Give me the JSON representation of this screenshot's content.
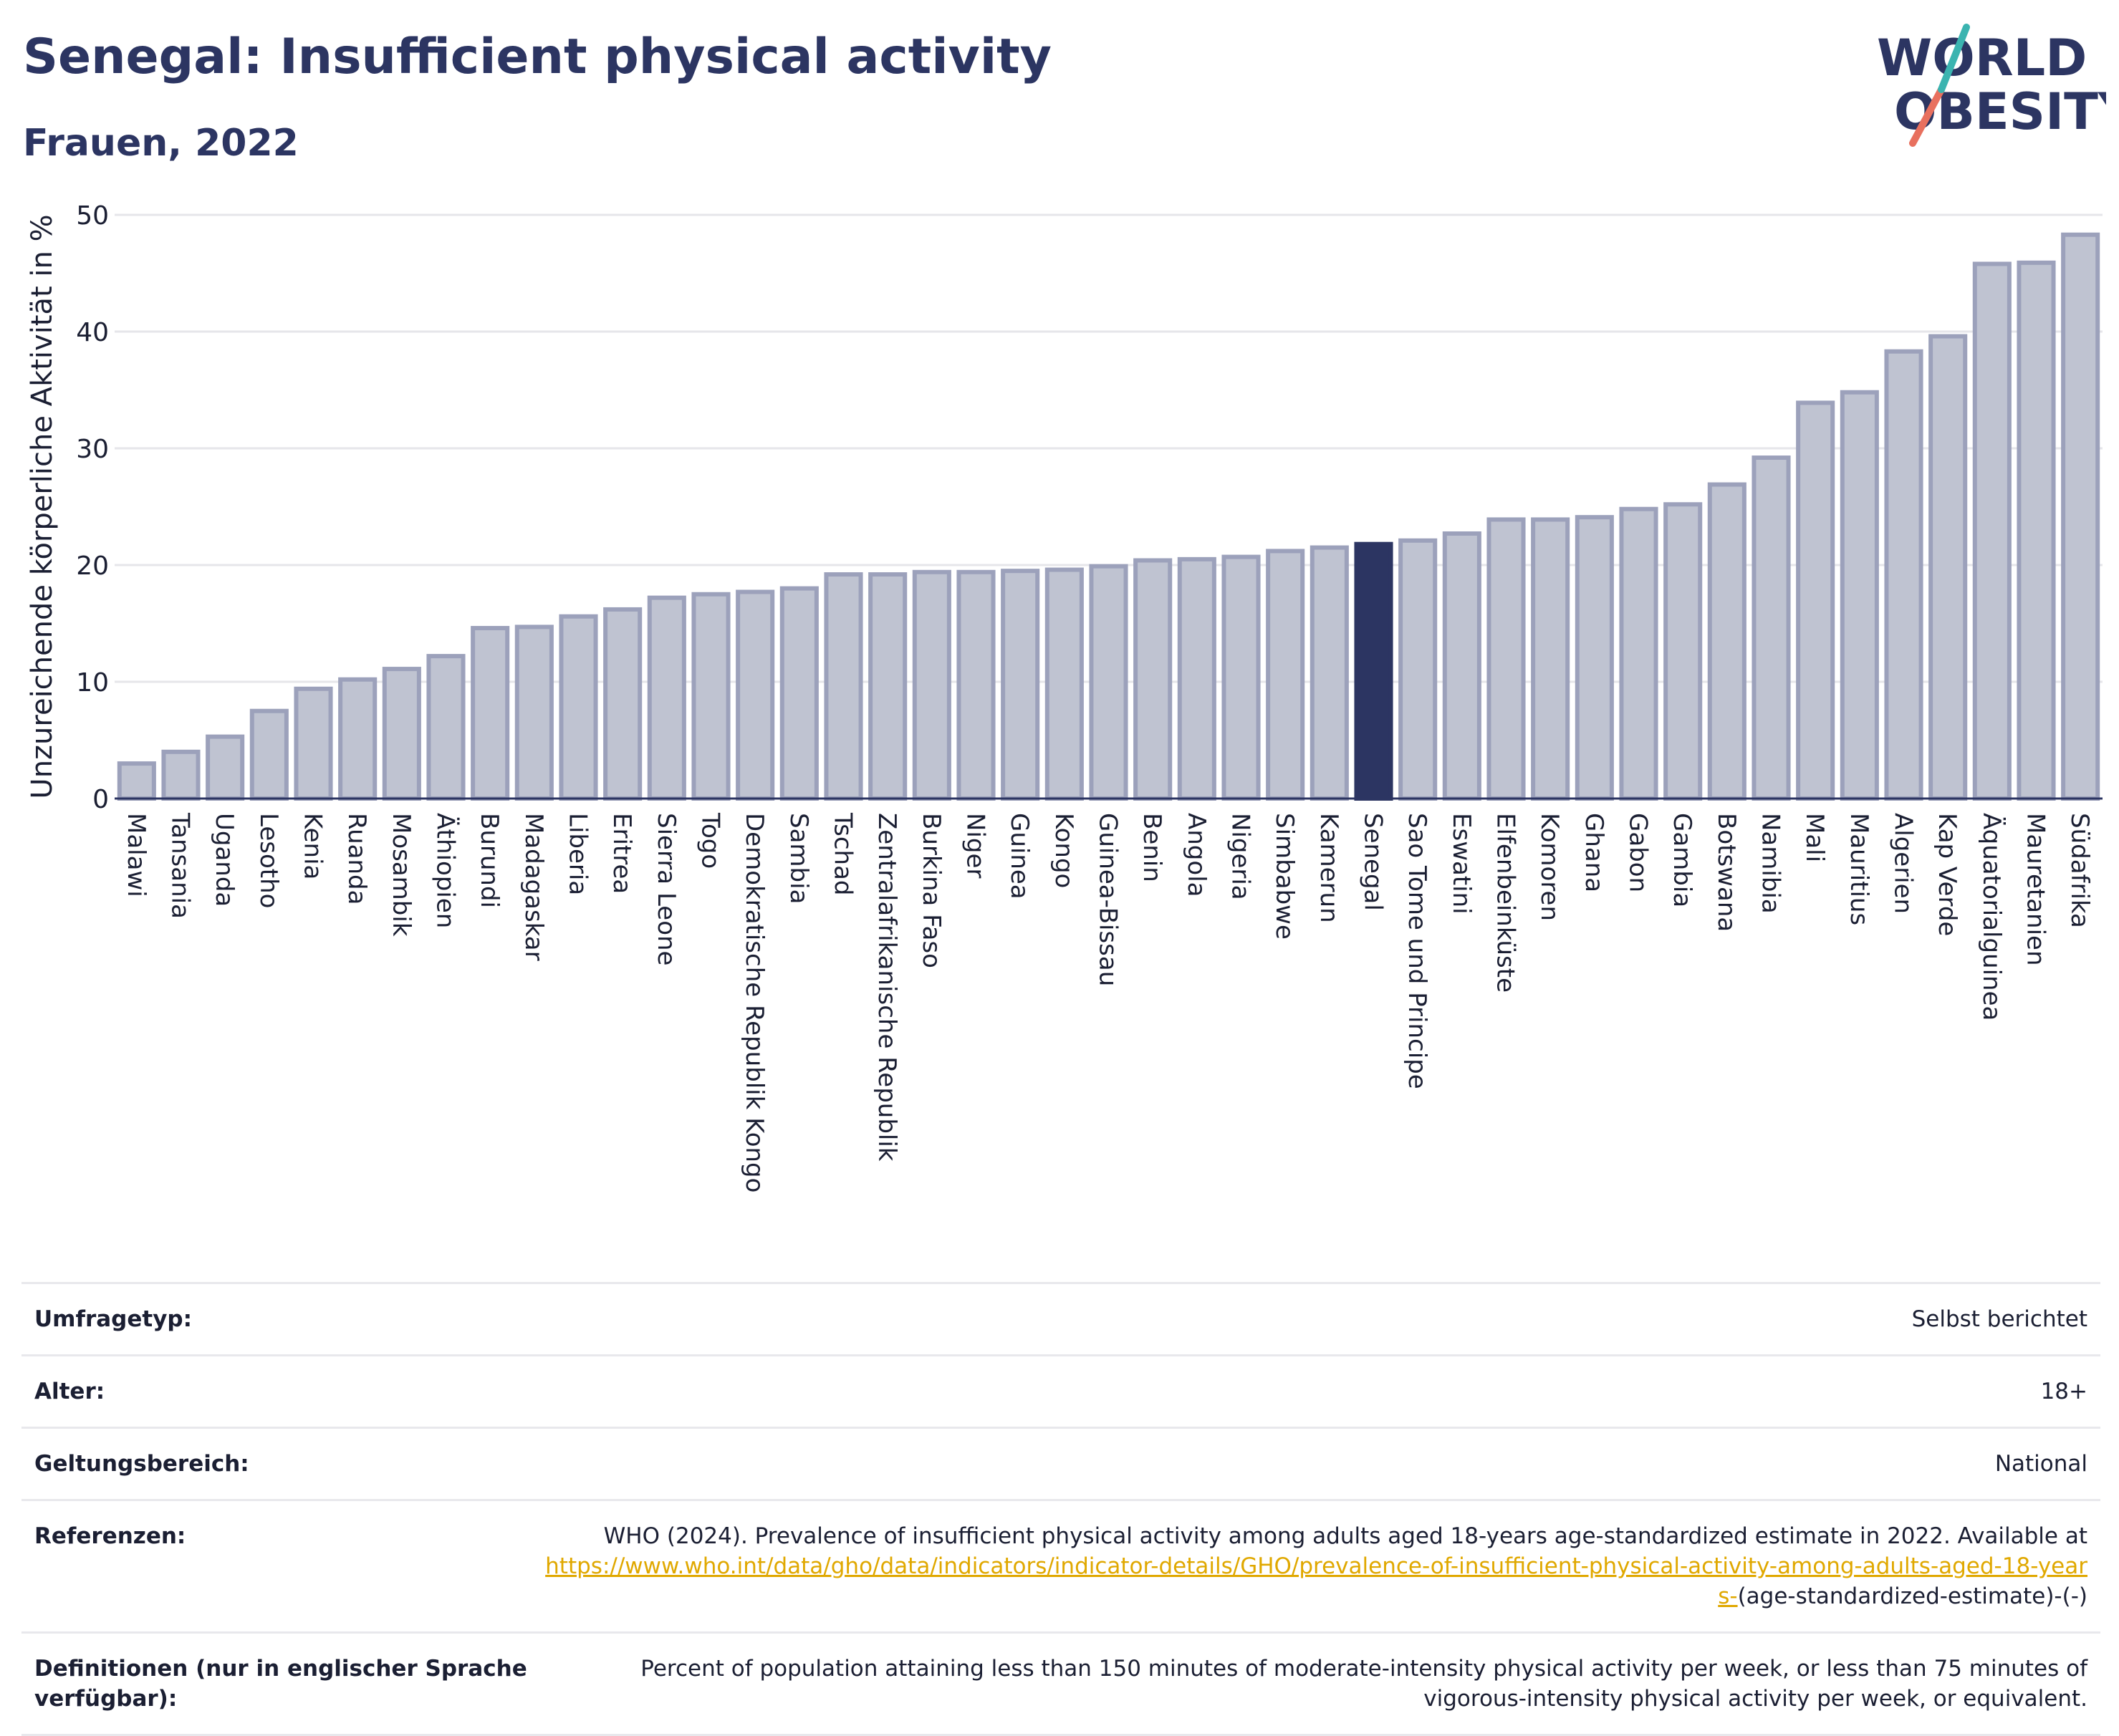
{
  "header": {
    "title": "Senegal: Insufficient physical activity",
    "subtitle": "Frauen, 2022"
  },
  "logo": {
    "line1": "WORLD",
    "line2": "OBESITY"
  },
  "colors": {
    "bar": "#bfc3d1",
    "bar_edge": "#9ca1bb",
    "highlight": "#2c3562",
    "grid": "#e6e6ea"
  },
  "chart_data": {
    "type": "bar",
    "title": "Senegal: Insufficient physical activity",
    "subtitle": "Frauen, 2022",
    "xlabel": "",
    "ylabel": "Unzureichende körperliche Aktivität in %",
    "ylim": [
      0,
      50
    ],
    "yticks": [
      0,
      10,
      20,
      30,
      40,
      50
    ],
    "grid": true,
    "highlight": "Senegal",
    "categories": [
      "Malawi",
      "Tansania",
      "Uganda",
      "Lesotho",
      "Kenia",
      "Ruanda",
      "Mosambik",
      "Äthiopien",
      "Burundi",
      "Madagaskar",
      "Liberia",
      "Eritrea",
      "Sierra Leone",
      "Togo",
      "Demokratische Republik Kongo",
      "Sambia",
      "Tschad",
      "Zentralafrikanische Republik",
      "Burkina Faso",
      "Niger",
      "Guinea",
      "Kongo",
      "Guinea-Bissau",
      "Benin",
      "Angola",
      "Nigeria",
      "Simbabwe",
      "Kamerun",
      "Senegal",
      "Sao Tome und Principe",
      "Eswatini",
      "Elfenbeinküste",
      "Komoren",
      "Ghana",
      "Gabon",
      "Gambia",
      "Botswana",
      "Namibia",
      "Mali",
      "Mauritius",
      "Algerien",
      "Kap Verde",
      "Äquatorialguinea",
      "Mauretanien",
      "Südafrika"
    ],
    "values": [
      3.0,
      4.0,
      5.3,
      7.5,
      9.4,
      10.2,
      11.1,
      12.2,
      14.6,
      14.7,
      15.6,
      16.2,
      17.2,
      17.5,
      17.7,
      18.0,
      19.2,
      19.2,
      19.4,
      19.4,
      19.5,
      19.6,
      19.9,
      20.4,
      20.5,
      20.7,
      21.2,
      21.5,
      21.8,
      22.1,
      22.7,
      23.9,
      23.9,
      24.1,
      24.8,
      25.2,
      26.9,
      29.2,
      33.9,
      34.8,
      38.3,
      39.6,
      45.8,
      45.9,
      48.3
    ]
  },
  "info": {
    "survey_label": "Umfragetyp:",
    "survey_value": "Selbst berichtet",
    "age_label": "Alter:",
    "age_value": "18+",
    "scope_label": "Geltungsbereich:",
    "scope_value": "National",
    "ref_label": "Referenzen:",
    "ref_text": "WHO (2024). Prevalence of insufficient physical activity among adults aged 18-years age-standardized estimate in 2022. Available at",
    "ref_link": "https://www.who.int/data/gho/data/indicators/indicator-details/GHO/prevalence-of-insufficient-physical-activity-among-adults-aged-18-years-",
    "ref_tail": "(age-standardized-estimate)-(-)",
    "def_label": "Definitionen (nur in englischer Sprache verfügbar):",
    "def_value": "Percent of population attaining less than 150 minutes of moderate-intensity physical activity per week, or less than 75 minutes of vigorous-intensity physical activity per week, or equivalent."
  }
}
